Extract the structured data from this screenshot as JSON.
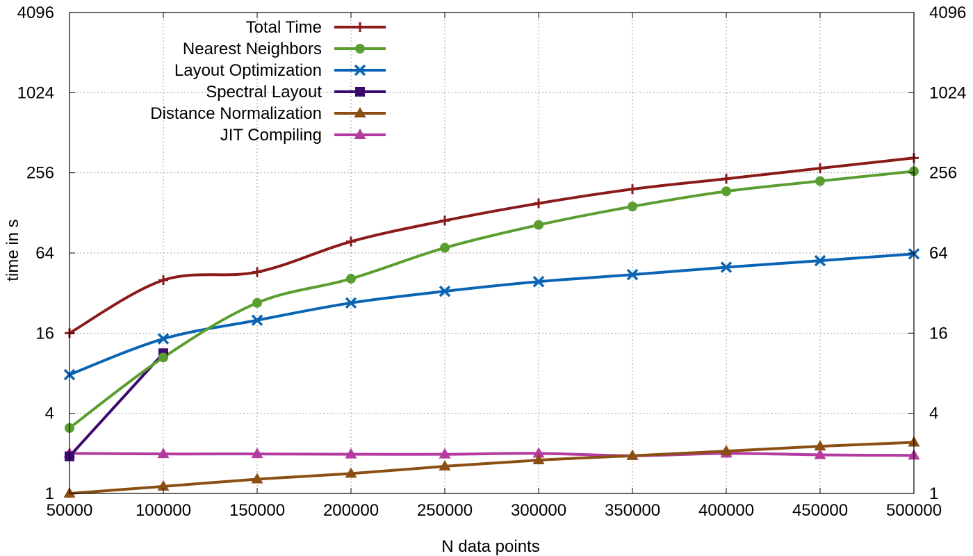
{
  "chart_data": {
    "type": "line",
    "xlabel": "N data points",
    "ylabel": "time in s",
    "y_scale": "log2",
    "xlim": [
      50000,
      500000
    ],
    "ylim": [
      1,
      4096
    ],
    "x_ticks": [
      "50000",
      "100000",
      "150000",
      "200000",
      "250000",
      "300000",
      "350000",
      "400000",
      "450000",
      "500000"
    ],
    "y_ticks": [
      "1",
      "4",
      "16",
      "64",
      "256",
      "1024",
      "4096"
    ],
    "y_ticks_right": [
      "1",
      "4",
      "16",
      "64",
      "256",
      "1024",
      "4096"
    ],
    "grid": true,
    "legend_position": "top-left",
    "x": [
      50000,
      100000,
      150000,
      200000,
      250000,
      300000,
      350000,
      400000,
      450000,
      500000
    ],
    "series": [
      {
        "name": "Total Time",
        "color": "#8b1a1a",
        "marker": "plus",
        "x": [
          50000,
          100000,
          150000,
          200000,
          250000,
          300000,
          350000,
          400000,
          450000,
          500000
        ],
        "values": [
          16,
          40,
          46,
          78,
          112,
          151,
          193,
          231,
          277,
          331
        ]
      },
      {
        "name": "Nearest Neighbors",
        "color": "#5a9e32",
        "marker": "circle",
        "x": [
          50000,
          100000,
          150000,
          200000,
          250000,
          300000,
          350000,
          400000,
          450000,
          500000
        ],
        "values": [
          3.1,
          10.5,
          27,
          41,
          70,
          104,
          143,
          186,
          222,
          263
        ]
      },
      {
        "name": "Layout Optimization",
        "color": "#0a64b4",
        "marker": "x",
        "x": [
          50000,
          100000,
          150000,
          200000,
          250000,
          300000,
          350000,
          400000,
          450000,
          500000
        ],
        "values": [
          7.8,
          14.5,
          20,
          27,
          33,
          39,
          44,
          50,
          56,
          63
        ]
      },
      {
        "name": "Spectral Layout",
        "color": "#3c0a6e",
        "marker": "square",
        "x": [
          50000,
          100000
        ],
        "values": [
          1.9,
          11.3
        ]
      },
      {
        "name": "Distance Normalization",
        "color": "#8b4f14",
        "marker": "triangle",
        "x": [
          50000,
          100000,
          150000,
          200000,
          250000,
          300000,
          350000,
          400000,
          450000,
          500000
        ],
        "values": [
          1.0,
          1.13,
          1.28,
          1.41,
          1.6,
          1.78,
          1.92,
          2.08,
          2.26,
          2.42
        ]
      },
      {
        "name": "JIT Compiling",
        "color": "#b43ca0",
        "marker": "triangle",
        "x": [
          50000,
          100000,
          150000,
          200000,
          250000,
          300000,
          350000,
          400000,
          450000,
          500000
        ],
        "values": [
          2.0,
          1.98,
          1.98,
          1.97,
          1.97,
          2.0,
          1.92,
          2.0,
          1.95,
          1.93
        ]
      }
    ]
  }
}
